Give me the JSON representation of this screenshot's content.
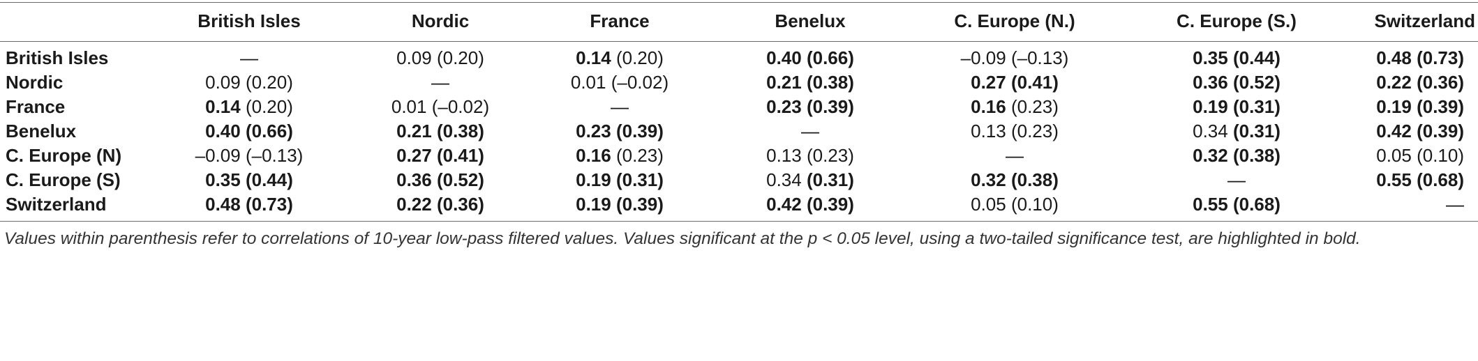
{
  "columns": [
    "",
    "British Isles",
    "Nordic",
    "France",
    "Benelux",
    "C. Europe (N.)",
    "C. Europe (S.)",
    "Switzerland"
  ],
  "rows": [
    {
      "label": "British Isles",
      "cells": [
        {
          "v": "—",
          "vb": false
        },
        {
          "v": "0.09",
          "vb": false,
          "p": "(0.20)",
          "pb": false
        },
        {
          "v": "0.14",
          "vb": true,
          "p": "(0.20)",
          "pb": false
        },
        {
          "v": "0.40",
          "vb": true,
          "p": "(0.66)",
          "pb": true
        },
        {
          "v": "–0.09",
          "vb": false,
          "p": "(–0.13)",
          "pb": false
        },
        {
          "v": "0.35",
          "vb": true,
          "p": "(0.44)",
          "pb": true
        },
        {
          "v": "0.48",
          "vb": true,
          "p": "(0.73)",
          "pb": true
        }
      ]
    },
    {
      "label": "Nordic",
      "cells": [
        {
          "v": "0.09",
          "vb": false,
          "p": "(0.20)",
          "pb": false
        },
        {
          "v": "—",
          "vb": false
        },
        {
          "v": "0.01",
          "vb": false,
          "p": "(–0.02)",
          "pb": false
        },
        {
          "v": "0.21",
          "vb": true,
          "p": "(0.38)",
          "pb": true
        },
        {
          "v": "0.27",
          "vb": true,
          "p": "(0.41)",
          "pb": true
        },
        {
          "v": "0.36",
          "vb": true,
          "p": "(0.52)",
          "pb": true
        },
        {
          "v": "0.22",
          "vb": true,
          "p": "(0.36)",
          "pb": true
        }
      ]
    },
    {
      "label": "France",
      "cells": [
        {
          "v": "0.14",
          "vb": true,
          "p": "(0.20)",
          "pb": false
        },
        {
          "v": "0.01",
          "vb": false,
          "p": "(–0.02)",
          "pb": false
        },
        {
          "v": "—",
          "vb": false
        },
        {
          "v": "0.23",
          "vb": true,
          "p": "(0.39)",
          "pb": true
        },
        {
          "v": "0.16",
          "vb": true,
          "p": "(0.23)",
          "pb": false
        },
        {
          "v": "0.19",
          "vb": true,
          "p": "(0.31)",
          "pb": true
        },
        {
          "v": "0.19",
          "vb": true,
          "p": "(0.39)",
          "pb": true
        }
      ]
    },
    {
      "label": "Benelux",
      "cells": [
        {
          "v": "0.40",
          "vb": true,
          "p": "(0.66)",
          "pb": true
        },
        {
          "v": "0.21",
          "vb": true,
          "p": "(0.38)",
          "pb": true
        },
        {
          "v": "0.23",
          "vb": true,
          "p": "(0.39)",
          "pb": true
        },
        {
          "v": "—",
          "vb": false
        },
        {
          "v": "0.13",
          "vb": false,
          "p": "(0.23)",
          "pb": false
        },
        {
          "v": "0.34",
          "vb": false,
          "p": "(0.31)",
          "pb": true
        },
        {
          "v": "0.42",
          "vb": true,
          "p": "(0.39)",
          "pb": true
        }
      ]
    },
    {
      "label": "C. Europe (N)",
      "cells": [
        {
          "v": "–0.09",
          "vb": false,
          "p": "(–0.13)",
          "pb": false
        },
        {
          "v": "0.27",
          "vb": true,
          "p": "(0.41)",
          "pb": true
        },
        {
          "v": "0.16",
          "vb": true,
          "p": "(0.23)",
          "pb": false
        },
        {
          "v": "0.13",
          "vb": false,
          "p": "(0.23)",
          "pb": false
        },
        {
          "v": "—",
          "vb": false
        },
        {
          "v": "0.32",
          "vb": true,
          "p": "(0.38)",
          "pb": true
        },
        {
          "v": "0.05",
          "vb": false,
          "p": "(0.10)",
          "pb": false
        }
      ]
    },
    {
      "label": "C. Europe (S)",
      "cells": [
        {
          "v": "0.35",
          "vb": true,
          "p": "(0.44)",
          "pb": true
        },
        {
          "v": "0.36",
          "vb": true,
          "p": "(0.52)",
          "pb": true
        },
        {
          "v": "0.19",
          "vb": true,
          "p": "(0.31)",
          "pb": true
        },
        {
          "v": "0.34",
          "vb": false,
          "p": "(0.31)",
          "pb": true
        },
        {
          "v": "0.32",
          "vb": true,
          "p": "(0.38)",
          "pb": true
        },
        {
          "v": "—",
          "vb": false
        },
        {
          "v": "0.55",
          "vb": true,
          "p": "(0.68)",
          "pb": true
        }
      ]
    },
    {
      "label": "Switzerland",
      "cells": [
        {
          "v": "0.48",
          "vb": true,
          "p": "(0.73)",
          "pb": true
        },
        {
          "v": "0.22",
          "vb": true,
          "p": "(0.36)",
          "pb": true
        },
        {
          "v": "0.19",
          "vb": true,
          "p": "(0.39)",
          "pb": true
        },
        {
          "v": "0.42",
          "vb": true,
          "p": "(0.39)",
          "pb": true
        },
        {
          "v": "0.05",
          "vb": false,
          "p": "(0.10)",
          "pb": false
        },
        {
          "v": "0.55",
          "vb": true,
          "p": "(0.68)",
          "pb": true
        },
        {
          "v": "—",
          "vb": false
        }
      ]
    }
  ],
  "footnote": "Values within parenthesis refer to correlations of 10-year low-pass filtered values. Values significant at the p < 0.05 level, using a two-tailed significance test, are highlighted in bold."
}
